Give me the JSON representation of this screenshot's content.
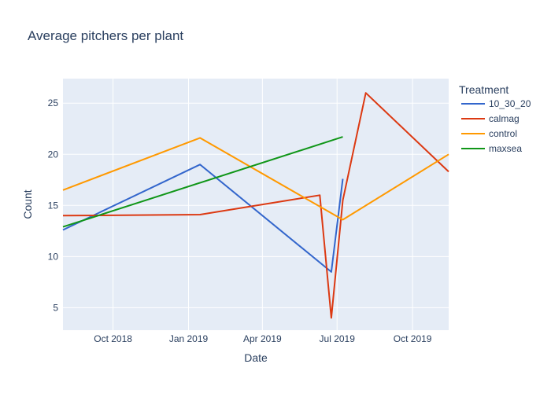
{
  "chart_data": {
    "type": "line",
    "title": "Average pitchers per plant",
    "xlabel": "Date",
    "ylabel": "Count",
    "x_ticks": [
      {
        "date": "2018-10-01",
        "label": "Oct 2018"
      },
      {
        "date": "2019-01-01",
        "label": "Jan 2019"
      },
      {
        "date": "2019-04-01",
        "label": "Apr 2019"
      },
      {
        "date": "2019-07-01",
        "label": "Jul 2019"
      },
      {
        "date": "2019-10-01",
        "label": "Oct 2019"
      }
    ],
    "y_ticks": [
      5,
      10,
      15,
      20,
      25
    ],
    "xlim": [
      "2018-08-01",
      "2019-11-14"
    ],
    "ylim": [
      2.8,
      27.4
    ],
    "grid": true,
    "legend": {
      "title": "Treatment",
      "position": "top-right"
    },
    "series": [
      {
        "name": "10_30_20",
        "color": "#3366cc",
        "points": [
          {
            "x": "2018-08-01",
            "y": 12.6
          },
          {
            "x": "2019-01-15",
            "y": 19.0
          },
          {
            "x": "2019-06-24",
            "y": 8.5
          },
          {
            "x": "2019-07-08",
            "y": 17.6
          }
        ]
      },
      {
        "name": "calmag",
        "color": "#dc3912",
        "points": [
          {
            "x": "2018-08-01",
            "y": 14.0
          },
          {
            "x": "2019-01-15",
            "y": 14.1
          },
          {
            "x": "2019-06-10",
            "y": 16.0
          },
          {
            "x": "2019-06-24",
            "y": 4.0
          },
          {
            "x": "2019-07-08",
            "y": 15.5
          },
          {
            "x": "2019-08-05",
            "y": 26.0
          },
          {
            "x": "2019-11-14",
            "y": 18.3
          }
        ]
      },
      {
        "name": "control",
        "color": "#ff9900",
        "points": [
          {
            "x": "2018-08-01",
            "y": 16.5
          },
          {
            "x": "2019-01-15",
            "y": 21.6
          },
          {
            "x": "2019-07-08",
            "y": 13.6
          },
          {
            "x": "2019-11-14",
            "y": 20.0
          }
        ]
      },
      {
        "name": "maxsea",
        "color": "#109618",
        "points": [
          {
            "x": "2018-08-01",
            "y": 12.9
          },
          {
            "x": "2019-07-08",
            "y": 21.7
          }
        ]
      }
    ]
  }
}
